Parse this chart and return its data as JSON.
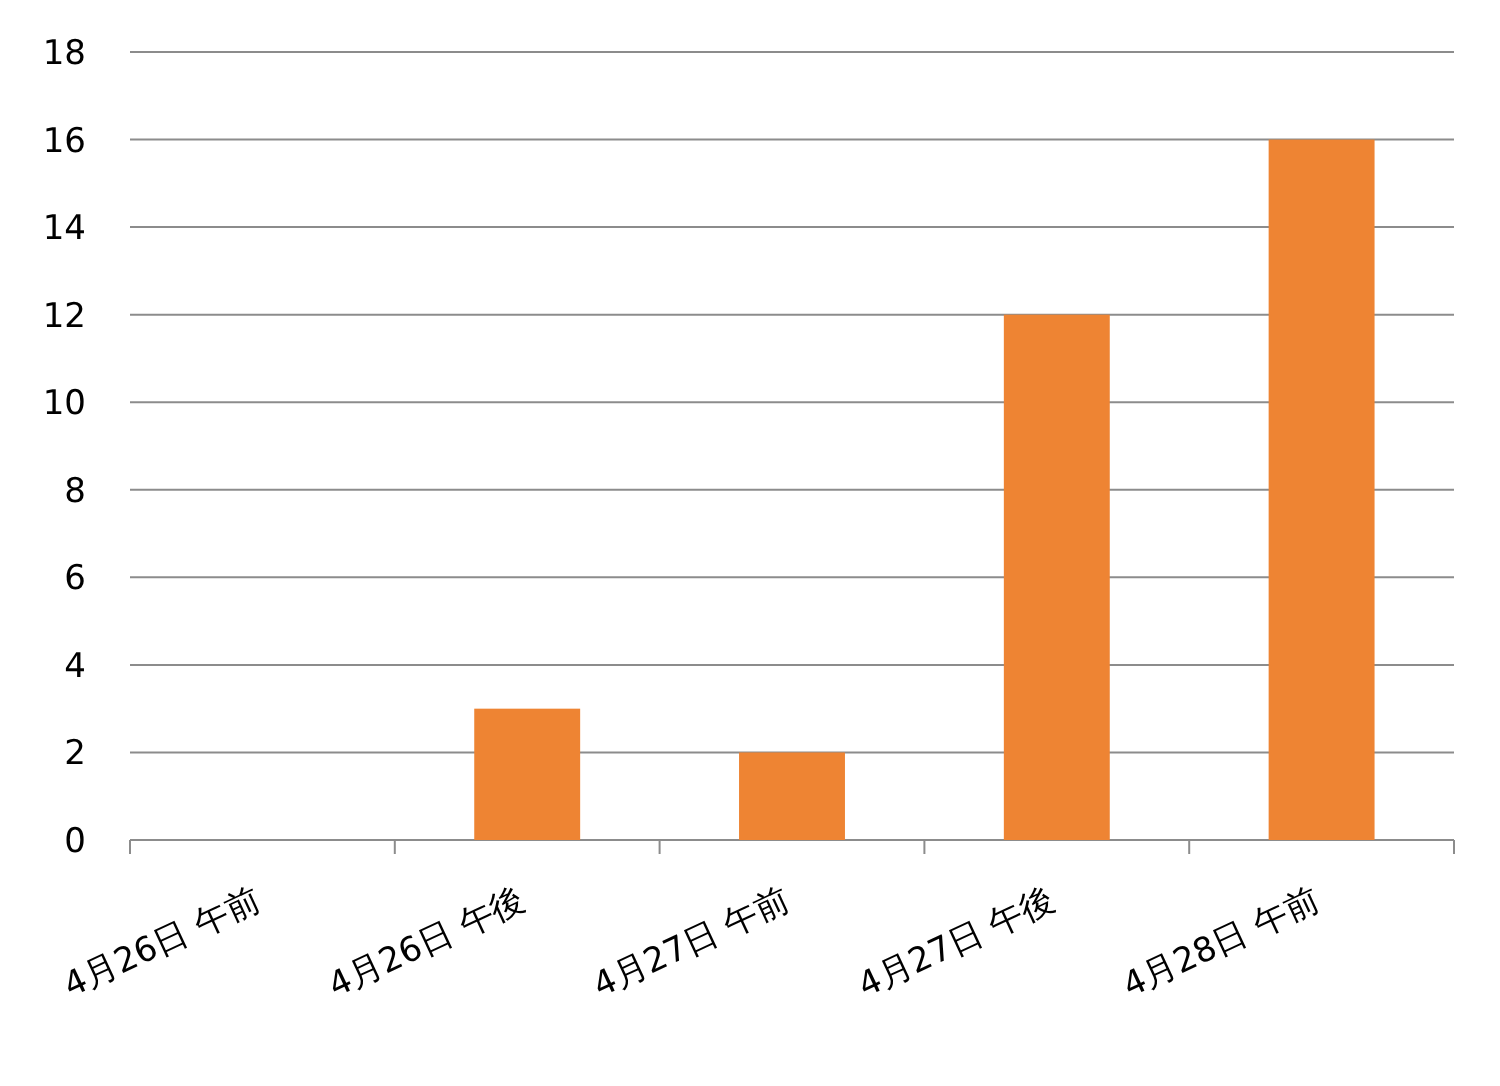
{
  "chart_data": {
    "type": "bar",
    "categories": [
      "4月26日 午前",
      "4月26日 午後",
      "4月27日 午前",
      "4月27日 午後",
      "4月28日 午前"
    ],
    "values": [
      0,
      3,
      2,
      12,
      16
    ],
    "color": "#ee8433",
    "ylim": [
      0,
      18
    ],
    "yticks": [
      0,
      2,
      4,
      6,
      8,
      10,
      12,
      14,
      16,
      18
    ],
    "grid": "y"
  }
}
